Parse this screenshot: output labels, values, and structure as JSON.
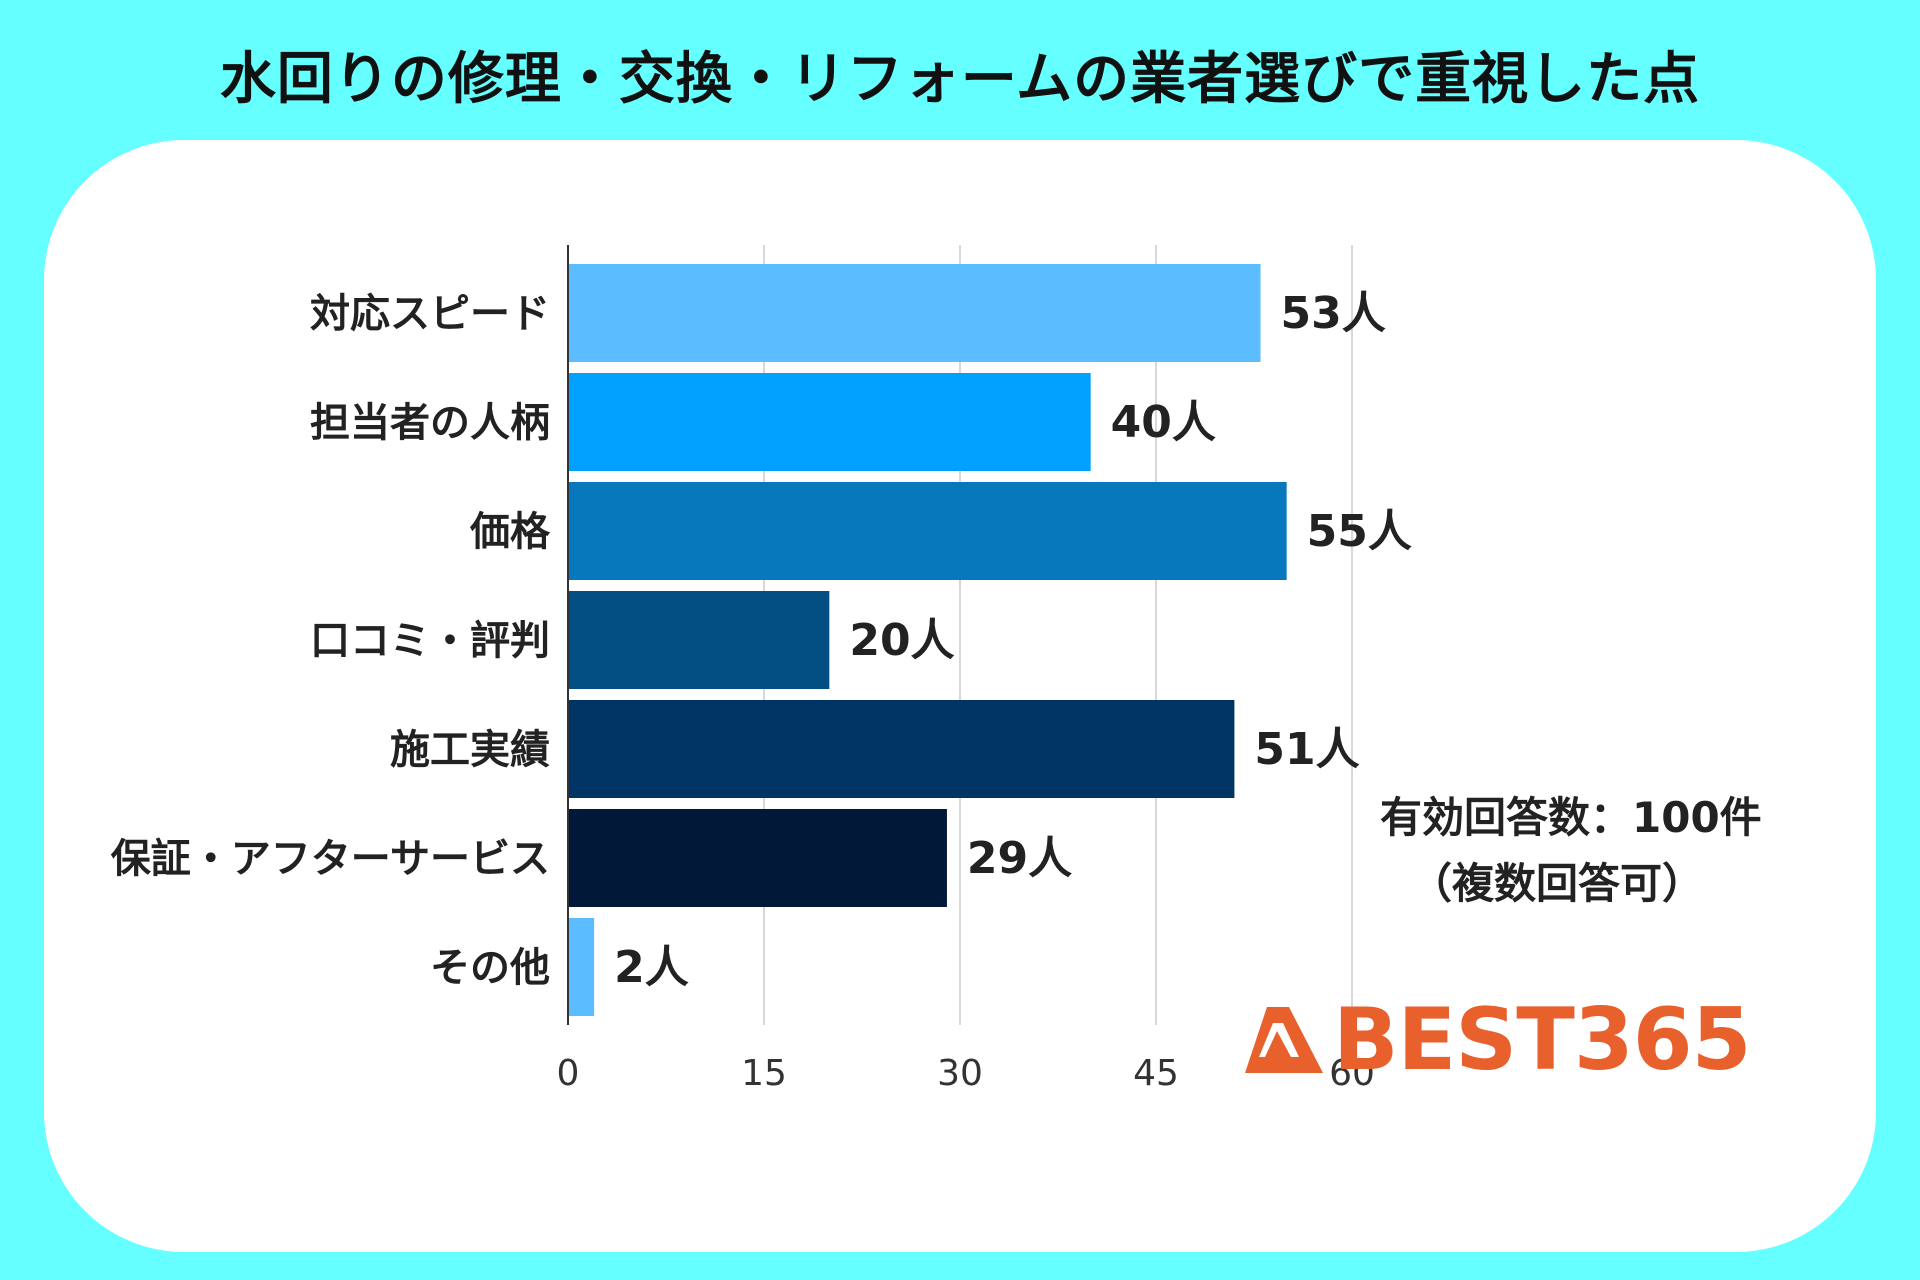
{
  "title": "水回りの修理・交換・リフォームの業者選びで重視した点",
  "note": {
    "line1": "有効回答数：100件",
    "line2": "（複数回答可）"
  },
  "logo": {
    "text": "BEST365",
    "color": "#e8602c"
  },
  "colors": {
    "background": "#66ffff",
    "card": "#ffffff",
    "grid": "#cccccc"
  },
  "chart_data": {
    "type": "bar",
    "orientation": "horizontal",
    "title": "",
    "categories": [
      "対応スピード",
      "担当者の人柄",
      "価格",
      "口コミ・評判",
      "施工実績",
      "保証・アフターサービス",
      "その他"
    ],
    "values": [
      53,
      40,
      55,
      20,
      51,
      29,
      2
    ],
    "value_labels": [
      "53人",
      "40人",
      "55人",
      "20人",
      "51人",
      "29人",
      "2人"
    ],
    "bar_colors": [
      "#5bbcff",
      "#00a0ff",
      "#0878bd",
      "#034f83",
      "#003464",
      "#011838",
      "#5bbcff"
    ],
    "xlim": [
      0,
      60
    ],
    "xticks": [
      0,
      15,
      30,
      45,
      60
    ],
    "xtick_labels": [
      "0",
      "15",
      "30",
      "45",
      "60"
    ],
    "grid": true,
    "legend": "none"
  }
}
